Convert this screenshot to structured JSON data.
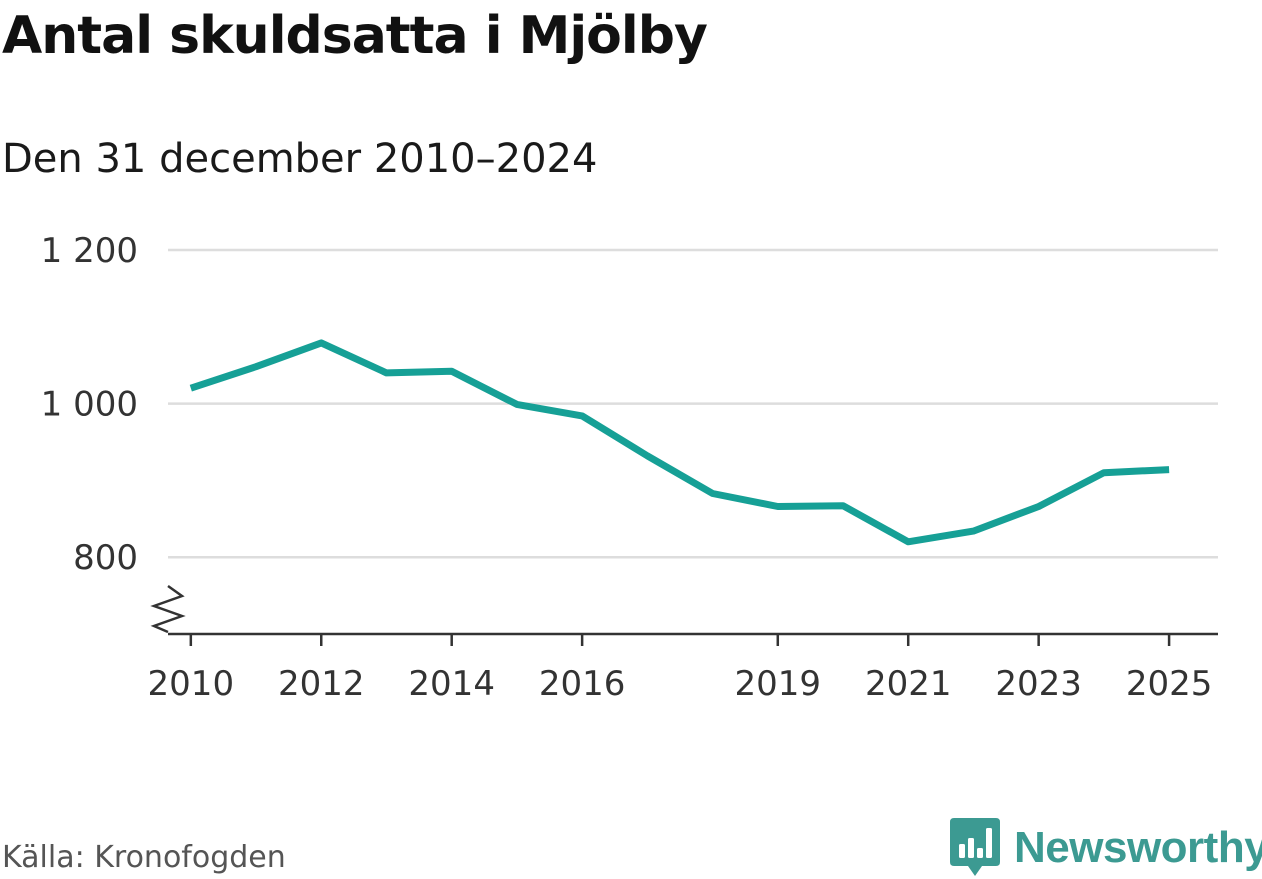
{
  "header": {
    "title": "Antal skuldsatta i Mjölby",
    "subtitle": "Den 31 december 2010–2024"
  },
  "footer": {
    "source": "Källa: Kronofogden",
    "brand": "Newsworthy"
  },
  "colors": {
    "line": "#16a096",
    "brand": "#3c9a92",
    "grid": "#dddddd",
    "axis": "#333333"
  },
  "chart_data": {
    "type": "line",
    "title": "Antal skuldsatta i Mjölby",
    "subtitle": "Den 31 december 2010–2024",
    "xlabel": "",
    "ylabel": "",
    "x": [
      2010,
      2011,
      2012,
      2013,
      2014,
      2015,
      2016,
      2017,
      2018,
      2019,
      2020,
      2021,
      2022,
      2023,
      2024,
      2025
    ],
    "series": [
      {
        "values": [
          1020,
          1048,
          1079,
          1040,
          1042,
          999,
          984,
          932,
          883,
          866,
          867,
          820,
          834,
          866,
          910,
          914
        ]
      }
    ],
    "xlim": [
      2009.65,
      2025.75
    ],
    "ylim": [
      700,
      1200
    ],
    "x_ticks": [
      2010,
      2012,
      2014,
      2016,
      2019,
      2021,
      2023,
      2025
    ],
    "x_tick_labels": [
      "2010",
      "2012",
      "2014",
      "2016",
      "2019",
      "2021",
      "2023",
      "2025"
    ],
    "y_ticks": [
      800,
      1000,
      1200
    ],
    "y_tick_labels": [
      "800",
      "1 000",
      "1 200"
    ],
    "y_axis_break": true,
    "grid": "horizontal",
    "legend": "none"
  }
}
